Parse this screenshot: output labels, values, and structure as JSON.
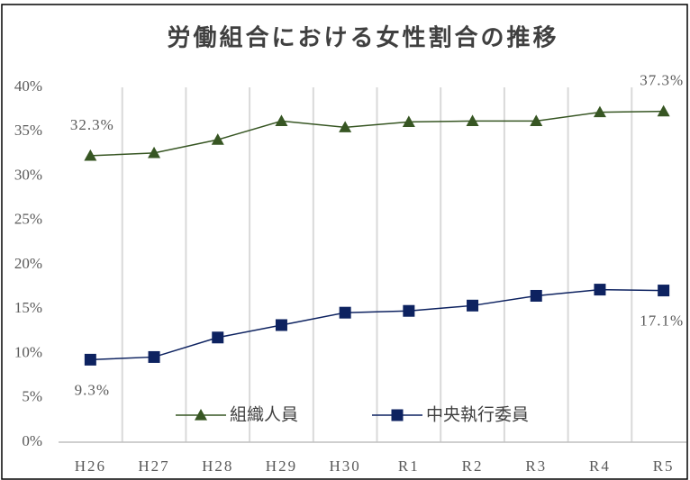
{
  "chart_data": {
    "type": "line",
    "title": "労働組合における女性割合の推移",
    "categories": [
      "H26",
      "H27",
      "H28",
      "H29",
      "H30",
      "R1",
      "R2",
      "R3",
      "R4",
      "R5"
    ],
    "series": [
      {
        "name": "組織人員",
        "color": "#375623",
        "marker": "triangle",
        "values": [
          32.3,
          32.6,
          34.1,
          36.2,
          35.5,
          36.1,
          36.2,
          36.2,
          37.2,
          37.3
        ],
        "value_labels": [
          "32.3%",
          null,
          null,
          null,
          null,
          null,
          null,
          null,
          null,
          "37.3%"
        ]
      },
      {
        "name": "中央執行委員",
        "color": "#0d2260",
        "marker": "square",
        "values": [
          9.3,
          9.6,
          11.8,
          13.2,
          14.6,
          14.8,
          15.4,
          16.5,
          17.2,
          17.1
        ],
        "value_labels": [
          "9.3%",
          null,
          null,
          null,
          null,
          null,
          null,
          null,
          null,
          "17.1%"
        ]
      }
    ],
    "ylim": [
      0,
      40
    ],
    "yticks": [
      {
        "value": 0,
        "label": "0%"
      },
      {
        "value": 5,
        "label": "5%"
      },
      {
        "value": 10,
        "label": "10%"
      },
      {
        "value": 15,
        "label": "15%"
      },
      {
        "value": 20,
        "label": "20%"
      },
      {
        "value": 25,
        "label": "25%"
      },
      {
        "value": 30,
        "label": "30%"
      },
      {
        "value": 35,
        "label": "35%"
      },
      {
        "value": 40,
        "label": "40%"
      }
    ],
    "legend": "bottom"
  }
}
